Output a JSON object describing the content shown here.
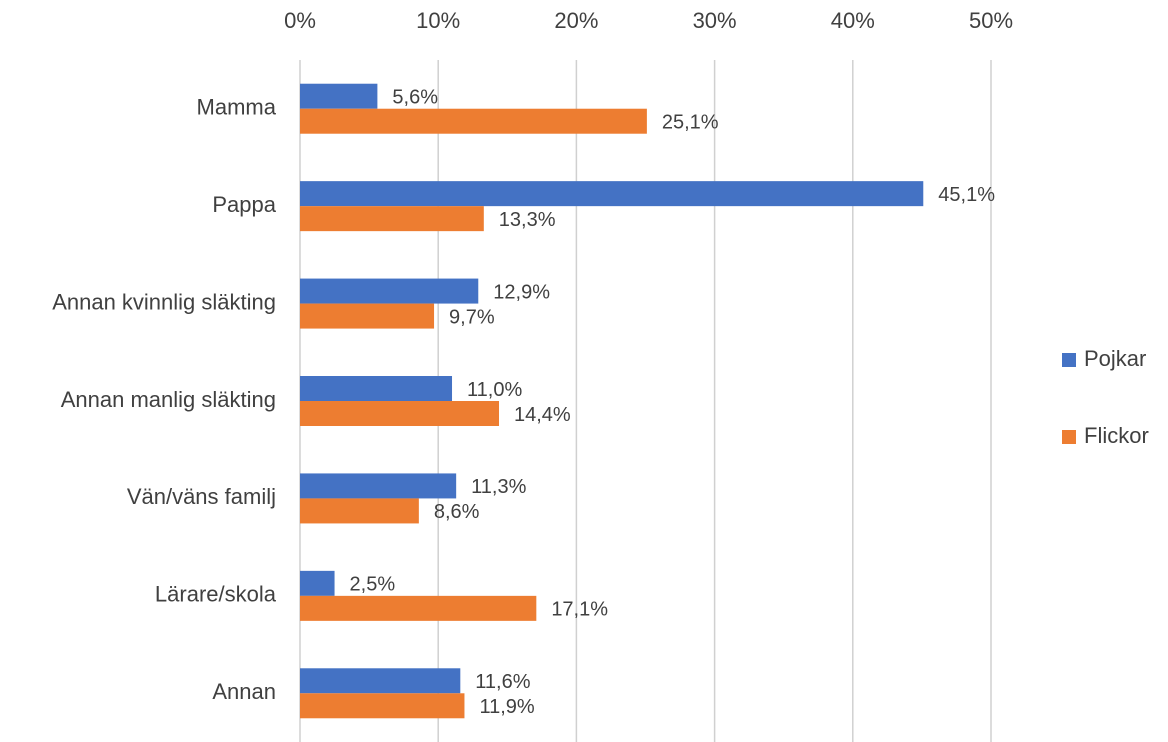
{
  "chart_data": {
    "type": "bar",
    "orientation": "horizontal",
    "categories": [
      "Mamma",
      "Pappa",
      "Annan kvinnlig släkting",
      "Annan manlig släkting",
      "Vän/väns familj",
      "Lärare/skola",
      "Annan"
    ],
    "series": [
      {
        "name": "Pojkar",
        "color": "#4472c4",
        "values": [
          5.6,
          45.1,
          12.9,
          11.0,
          11.3,
          2.5,
          11.6
        ],
        "value_labels": [
          "5,6%",
          "45,1%",
          "12,9%",
          "11,0%",
          "11,3%",
          "2,5%",
          "11,6%"
        ]
      },
      {
        "name": "Flickor",
        "color": "#ed7d31",
        "values": [
          25.1,
          13.3,
          9.7,
          14.4,
          8.6,
          17.1,
          11.9
        ],
        "value_labels": [
          "25,1%",
          "13,3%",
          "9,7%",
          "14,4%",
          "8,6%",
          "17,1%",
          "11,9%"
        ]
      }
    ],
    "xlim": [
      0,
      50
    ],
    "xticks": [
      {
        "value": 0,
        "label": "0%"
      },
      {
        "value": 10,
        "label": "10%"
      },
      {
        "value": 20,
        "label": "20%"
      },
      {
        "value": 30,
        "label": "30%"
      },
      {
        "value": 40,
        "label": "40%"
      },
      {
        "value": 50,
        "label": "50%"
      }
    ],
    "grid": true,
    "legend": "right"
  }
}
